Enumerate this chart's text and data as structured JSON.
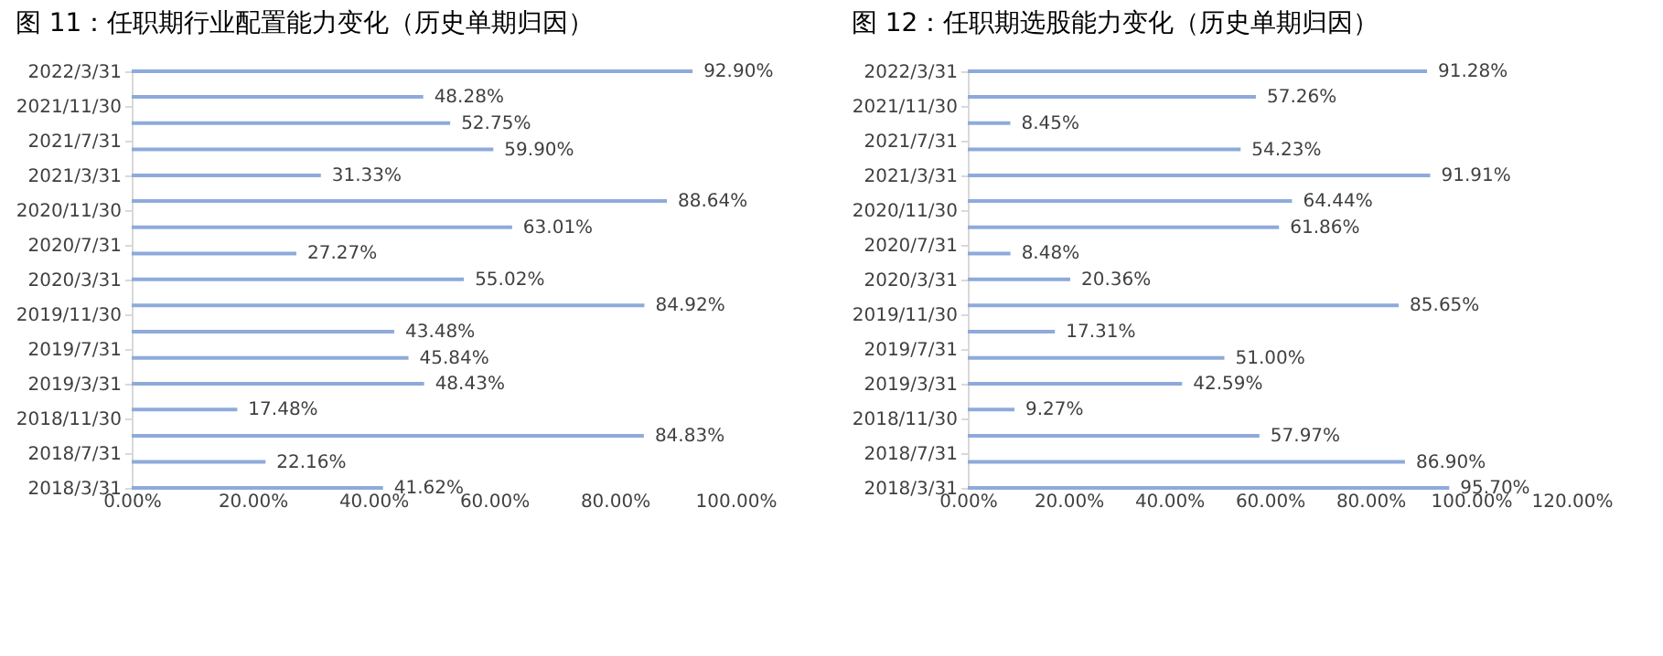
{
  "chart_data": [
    {
      "type": "bar",
      "orientation": "horizontal",
      "title": "图 11：任职期行业配置能力变化（历史单期归因）",
      "x": [
        "2018-03-31",
        "2018-06-30",
        "2018-09-30",
        "2018-12-31",
        "2019-03-31",
        "2019-06-30",
        "2019-09-30",
        "2019-12-31",
        "2020-03-31",
        "2020-06-30",
        "2020-09-30",
        "2020-12-31",
        "2021-03-31",
        "2021-06-30",
        "2021-09-30",
        "2021-12-31",
        "2022-03-31"
      ],
      "values": [
        41.62,
        22.16,
        84.83,
        17.48,
        48.43,
        45.84,
        43.48,
        84.92,
        55.02,
        27.27,
        63.01,
        88.64,
        31.33,
        59.9,
        52.75,
        48.28,
        92.9
      ],
      "value_labels": [
        "41.62%",
        "22.16%",
        "84.83%",
        "17.48%",
        "48.43%",
        "45.84%",
        "43.48%",
        "84.92%",
        "55.02%",
        "27.27%",
        "63.01%",
        "88.64%",
        "31.33%",
        "59.90%",
        "52.75%",
        "48.28%",
        "92.90%"
      ],
      "color": "#8eaadb",
      "xlim": [
        0,
        100
      ],
      "xticks": [
        {
          "value": 0,
          "label": "0.00%"
        },
        {
          "value": 20,
          "label": "20.00%"
        },
        {
          "value": 40,
          "label": "40.00%"
        },
        {
          "value": 60,
          "label": "60.00%"
        },
        {
          "value": 80,
          "label": "80.00%"
        },
        {
          "value": 100,
          "label": "100.00%"
        }
      ],
      "ylim": [
        "2018-03-31",
        "2022-03-31"
      ],
      "yticks": [
        {
          "value": "2018-03-31",
          "label": "2018/3/31"
        },
        {
          "value": "2018-07-31",
          "label": "2018/7/31"
        },
        {
          "value": "2018-11-30",
          "label": "2018/11/30"
        },
        {
          "value": "2019-03-31",
          "label": "2019/3/31"
        },
        {
          "value": "2019-07-31",
          "label": "2019/7/31"
        },
        {
          "value": "2019-11-30",
          "label": "2019/11/30"
        },
        {
          "value": "2020-03-31",
          "label": "2020/3/31"
        },
        {
          "value": "2020-07-31",
          "label": "2020/7/31"
        },
        {
          "value": "2020-11-30",
          "label": "2020/11/30"
        },
        {
          "value": "2021-03-31",
          "label": "2021/3/31"
        },
        {
          "value": "2021-07-31",
          "label": "2021/7/31"
        },
        {
          "value": "2021-11-30",
          "label": "2021/11/30"
        },
        {
          "value": "2022-03-31",
          "label": "2022/3/31"
        }
      ],
      "grid": false,
      "legend": false
    },
    {
      "type": "bar",
      "orientation": "horizontal",
      "title": "图 12：任职期选股能力变化（历史单期归因）",
      "x": [
        "2018-03-31",
        "2018-06-30",
        "2018-09-30",
        "2018-12-31",
        "2019-03-31",
        "2019-06-30",
        "2019-09-30",
        "2019-12-31",
        "2020-03-31",
        "2020-06-30",
        "2020-09-30",
        "2020-12-31",
        "2021-03-31",
        "2021-06-30",
        "2021-09-30",
        "2021-12-31",
        "2022-03-31"
      ],
      "values": [
        95.7,
        86.9,
        57.97,
        9.27,
        42.59,
        51.0,
        17.31,
        85.65,
        20.36,
        8.48,
        61.86,
        64.44,
        91.91,
        54.23,
        8.45,
        57.26,
        91.28
      ],
      "value_labels": [
        "95.70%",
        "86.90%",
        "57.97%",
        "9.27%",
        "42.59%",
        "51.00%",
        "17.31%",
        "85.65%",
        "20.36%",
        "8.48%",
        "61.86%",
        "64.44%",
        "91.91%",
        "54.23%",
        "8.45%",
        "57.26%",
        "91.28%"
      ],
      "color": "#8eaadb",
      "xlim": [
        0,
        120
      ],
      "xticks": [
        {
          "value": 0,
          "label": "0.00%"
        },
        {
          "value": 20,
          "label": "20.00%"
        },
        {
          "value": 40,
          "label": "40.00%"
        },
        {
          "value": 60,
          "label": "60.00%"
        },
        {
          "value": 80,
          "label": "80.00%"
        },
        {
          "value": 100,
          "label": "100.00%"
        },
        {
          "value": 120,
          "label": "120.00%"
        }
      ],
      "ylim": [
        "2018-03-31",
        "2022-03-31"
      ],
      "yticks": [
        {
          "value": "2018-03-31",
          "label": "2018/3/31"
        },
        {
          "value": "2018-07-31",
          "label": "2018/7/31"
        },
        {
          "value": "2018-11-30",
          "label": "2018/11/30"
        },
        {
          "value": "2019-03-31",
          "label": "2019/3/31"
        },
        {
          "value": "2019-07-31",
          "label": "2019/7/31"
        },
        {
          "value": "2019-11-30",
          "label": "2019/11/30"
        },
        {
          "value": "2020-03-31",
          "label": "2020/3/31"
        },
        {
          "value": "2020-07-31",
          "label": "2020/7/31"
        },
        {
          "value": "2020-11-30",
          "label": "2020/11/30"
        },
        {
          "value": "2021-03-31",
          "label": "2021/3/31"
        },
        {
          "value": "2021-07-31",
          "label": "2021/7/31"
        },
        {
          "value": "2021-11-30",
          "label": "2021/11/30"
        },
        {
          "value": "2022-03-31",
          "label": "2022/3/31"
        }
      ],
      "grid": false,
      "legend": false
    }
  ]
}
